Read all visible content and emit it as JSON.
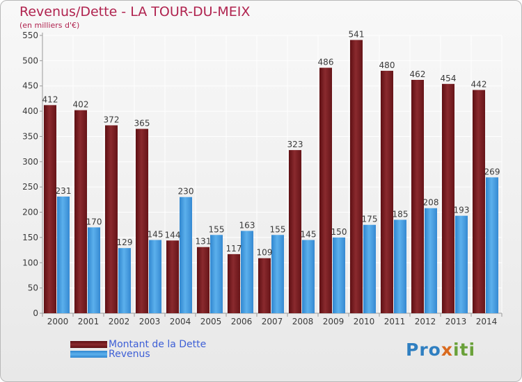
{
  "header": {
    "title": "Revenus/Dette - LA TOUR-DU-MEIX",
    "subtitle": "(en milliers d'€)"
  },
  "legend": {
    "debt_label": "Montant de la Dette",
    "revenue_label": "Revenus"
  },
  "brand": {
    "part1": "Pro",
    "part2": "x",
    "part3": "iti"
  },
  "colors": {
    "debt": "#7a1a1e",
    "revenue": "#3c97dc",
    "title": "#b0234f",
    "legend_text": "#3d5fd6"
  },
  "chart_data": {
    "type": "bar",
    "title": "Revenus/Dette - LA TOUR-DU-MEIX",
    "subtitle": "(en milliers d'€)",
    "categories": [
      "2000",
      "2001",
      "2002",
      "2003",
      "2004",
      "2005",
      "2006",
      "2007",
      "2008",
      "2009",
      "2010",
      "2011",
      "2012",
      "2013",
      "2014"
    ],
    "series": [
      {
        "name": "Montant de la Dette",
        "values": [
          412,
          402,
          372,
          365,
          144,
          131,
          117,
          109,
          323,
          486,
          541,
          480,
          462,
          454,
          442
        ]
      },
      {
        "name": "Revenus",
        "values": [
          231,
          170,
          129,
          145,
          230,
          155,
          163,
          155,
          145,
          150,
          175,
          185,
          208,
          193,
          269
        ]
      }
    ],
    "ylim": [
      0,
      550
    ],
    "yticks": [
      0,
      50,
      100,
      150,
      200,
      250,
      300,
      350,
      400,
      450,
      500,
      550
    ],
    "grid": true,
    "legend_position": "bottom-left"
  }
}
